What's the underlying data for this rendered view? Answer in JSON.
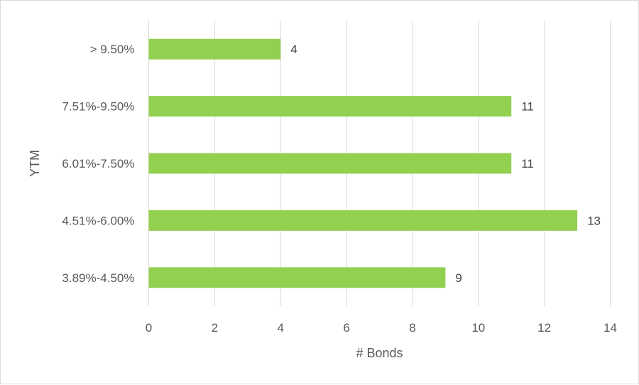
{
  "chart_data": {
    "type": "bar",
    "orientation": "horizontal",
    "categories": [
      "3.89%-4.50%",
      "4.51%-6.00%",
      "6.01%-7.50%",
      "7.51%-9.50%",
      "> 9.50%"
    ],
    "values": [
      9,
      13,
      11,
      11,
      4
    ],
    "title": "",
    "xlabel": "# Bonds",
    "ylabel": "YTM",
    "xlim": [
      0,
      14
    ],
    "xticks": [
      0,
      2,
      4,
      6,
      8,
      10,
      12,
      14
    ],
    "grid": true,
    "data_labels": true,
    "legend": false,
    "bar_color": "#92d050",
    "grid_color": "#d9d9d9",
    "text_color": "#595959"
  }
}
